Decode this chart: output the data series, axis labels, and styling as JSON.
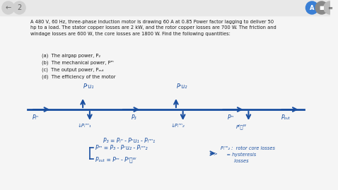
{
  "bg_color": "#f0f0f0",
  "text_color": "#1a1a2e",
  "blue_color": "#1a4fa0",
  "arrow_color": "#1a4fa0",
  "title_text": "A 480 V, 60 Hz, three-phase induction motor is drawing 60 A at 0.85 Power factor lagging to deliver 50\nhp to a load. The stator copper losses are 2 kW, and the rotor copper losses are 700 W. The friction and\nwindage losses are 600 W, the core losses are 1800 W. Find the following quantities:",
  "items": [
    "(a)  The airgap power, P₂",
    "(b)  The mechanical power, Pₘ",
    "(c)  The output power, Pₒᵤₜ",
    "(d)  The efficiency of the motor"
  ],
  "eq1": "P₃ = Pᵢⁿ - Pᶜu₁ - Pᵢⁿⁿ₁",
  "eq2": "Pₘ = P₃ - Pᶜu₂ - Pᵢⁿⁿ₂",
  "eq3": "Pₒᵤₜ = Pₘ - Pᶠᵯᵂ",
  "nav_left_color": "#cccccc",
  "nav_right1_color": "#3a7fd5",
  "nav_right2_color": "#555555"
}
